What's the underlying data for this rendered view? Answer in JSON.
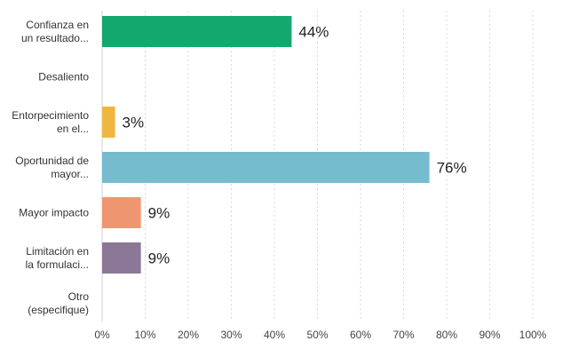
{
  "chart_data": {
    "type": "bar",
    "orientation": "horizontal",
    "categories": [
      [
        "Confianza en",
        "un resultado..."
      ],
      [
        "Desaliento"
      ],
      [
        "Entorpecimiento",
        "en el..."
      ],
      [
        "Oportunidad de",
        "mayor..."
      ],
      [
        "Mayor impacto"
      ],
      [
        "Limitación en",
        "la formulaci..."
      ],
      [
        "Otro",
        "(especifique)"
      ]
    ],
    "values": [
      44,
      0,
      3,
      76,
      9,
      9,
      0
    ],
    "data_labels": [
      "44%",
      "",
      "3%",
      "76%",
      "9%",
      "9%",
      ""
    ],
    "colors": [
      "#12a86e",
      "#12a86e",
      "#efb63f",
      "#76bccf",
      "#ef9670",
      "#8b7796",
      "#8b7796"
    ],
    "xlim": [
      0,
      100
    ],
    "x_ticks": [
      0,
      10,
      20,
      30,
      40,
      50,
      60,
      70,
      80,
      90,
      100
    ],
    "x_tick_labels": [
      "0%",
      "10%",
      "20%",
      "30%",
      "40%",
      "50%",
      "60%",
      "70%",
      "80%",
      "90%",
      "100%"
    ],
    "grid": true,
    "title": "",
    "xlabel": "",
    "ylabel": ""
  }
}
